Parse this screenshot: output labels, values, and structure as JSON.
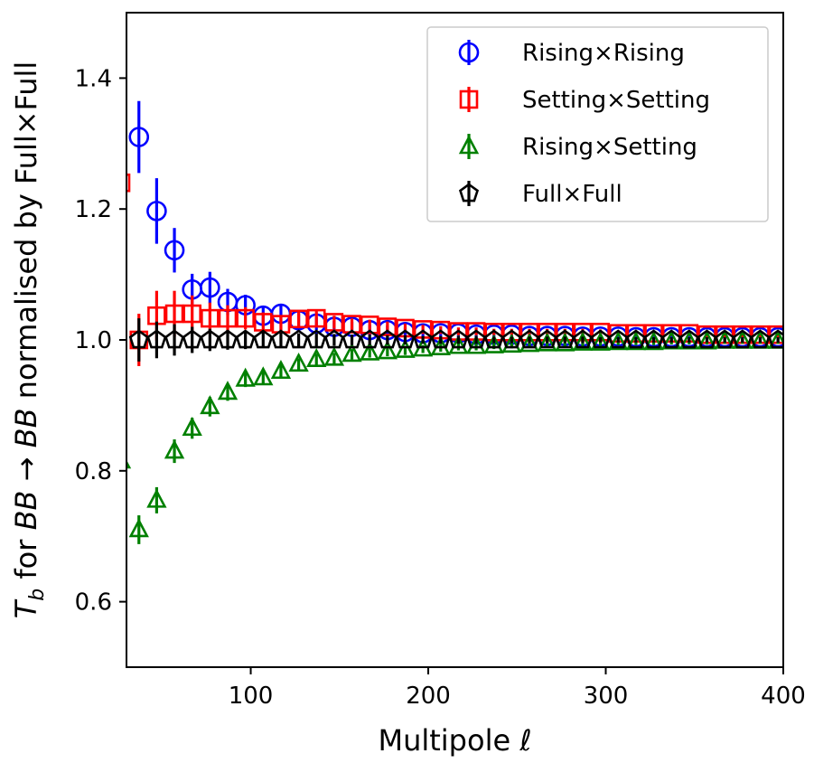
{
  "chart_data": {
    "type": "scatter",
    "title": "",
    "xlabel": "Multipole ℓ",
    "ylabel": "T_b for BB → BB normalised by Full×Full",
    "ylabel_parts": {
      "sym": "T",
      "sub": "b",
      "mid": " for ",
      "from": "BB",
      "arrow": " → ",
      "to": "BB",
      "rest": " normalised by Full×Full"
    },
    "xlim": [
      30,
      400
    ],
    "ylim": [
      0.5,
      1.5
    ],
    "xticks": [
      100,
      200,
      300,
      400
    ],
    "xtick_labels": [
      "100",
      "200",
      "300",
      "400"
    ],
    "yticks": [
      0.6,
      0.8,
      1.0,
      1.2,
      1.4
    ],
    "ytick_labels": [
      "0.6",
      "0.8",
      "1.0",
      "1.2",
      "1.4"
    ],
    "grid": false,
    "legend_position": "top-right",
    "series": [
      {
        "name": "Rising×Rising",
        "marker": "circle",
        "color": "#0000ff",
        "x": [
          37,
          47,
          57,
          67,
          77,
          87,
          97,
          107,
          117,
          127,
          137,
          147,
          157,
          167,
          177,
          187,
          197,
          207,
          217,
          227,
          237,
          247,
          257,
          267,
          277,
          287,
          297,
          307,
          317,
          327,
          337,
          347,
          357,
          367,
          377,
          387,
          397
        ],
        "y": [
          1.31,
          1.197,
          1.137,
          1.077,
          1.08,
          1.058,
          1.053,
          1.037,
          1.04,
          1.03,
          1.025,
          1.02,
          1.02,
          1.015,
          1.015,
          1.012,
          1.01,
          1.01,
          1.01,
          1.008,
          1.008,
          1.008,
          1.006,
          1.006,
          1.006,
          1.005,
          1.005,
          1.005,
          1.004,
          1.004,
          1.004,
          1.004,
          1.004,
          1.004,
          1.004,
          1.004,
          1.004
        ],
        "err": [
          0.055,
          0.05,
          0.034,
          0.024,
          0.024,
          0.02,
          0.016,
          0.014,
          0.013,
          0.011,
          0.01,
          0.009,
          0.008,
          0.008,
          0.007,
          0.007,
          0.006,
          0.006,
          0.006,
          0.006,
          0.005,
          0.005,
          0.005,
          0.005,
          0.005,
          0.005,
          0.004,
          0.004,
          0.004,
          0.004,
          0.004,
          0.004,
          0.004,
          0.004,
          0.004,
          0.004,
          0.004
        ]
      },
      {
        "name": "Setting×Setting",
        "marker": "square",
        "color": "#ff0000",
        "x": [
          37,
          47,
          57,
          67,
          77,
          87,
          97,
          107,
          117,
          127,
          137,
          147,
          157,
          167,
          177,
          187,
          197,
          207,
          217,
          227,
          237,
          247,
          257,
          267,
          277,
          287,
          297,
          307,
          317,
          327,
          337,
          347,
          357,
          367,
          377,
          387,
          397
        ],
        "y": [
          1.0,
          1.037,
          1.04,
          1.04,
          1.033,
          1.033,
          1.033,
          1.027,
          1.024,
          1.032,
          1.033,
          1.027,
          1.024,
          1.023,
          1.02,
          1.018,
          1.016,
          1.015,
          1.013,
          1.013,
          1.012,
          1.012,
          1.012,
          1.012,
          1.012,
          1.012,
          1.012,
          1.01,
          1.01,
          1.01,
          1.01,
          1.01,
          1.008,
          1.008,
          1.008,
          1.008,
          1.008
        ],
        "err": [
          0.04,
          0.038,
          0.035,
          0.028,
          0.024,
          0.02,
          0.017,
          0.015,
          0.013,
          0.012,
          0.011,
          0.01,
          0.009,
          0.008,
          0.008,
          0.007,
          0.007,
          0.006,
          0.006,
          0.006,
          0.005,
          0.005,
          0.005,
          0.005,
          0.005,
          0.005,
          0.004,
          0.004,
          0.004,
          0.004,
          0.004,
          0.004,
          0.004,
          0.004,
          0.004,
          0.004,
          0.004
        ]
      },
      {
        "name": "Rising×Setting",
        "marker": "triangle",
        "color": "#008000",
        "x": [
          37,
          47,
          57,
          67,
          77,
          87,
          97,
          107,
          117,
          127,
          137,
          147,
          157,
          167,
          177,
          187,
          197,
          207,
          217,
          227,
          237,
          247,
          257,
          267,
          277,
          287,
          297,
          307,
          317,
          327,
          337,
          347,
          357,
          367,
          377,
          387,
          397
        ],
        "y": [
          0.71,
          0.755,
          0.83,
          0.865,
          0.898,
          0.92,
          0.94,
          0.942,
          0.952,
          0.963,
          0.97,
          0.972,
          0.978,
          0.98,
          0.982,
          0.984,
          0.986,
          0.988,
          0.99,
          0.99,
          0.991,
          0.992,
          0.993,
          0.994,
          0.994,
          0.995,
          0.995,
          0.996,
          0.996,
          0.996,
          0.997,
          0.997,
          0.997,
          0.998,
          0.998,
          0.998,
          0.998
        ],
        "err": [
          0.022,
          0.02,
          0.018,
          0.016,
          0.015,
          0.013,
          0.012,
          0.011,
          0.01,
          0.009,
          0.009,
          0.008,
          0.008,
          0.007,
          0.007,
          0.007,
          0.006,
          0.006,
          0.006,
          0.006,
          0.005,
          0.005,
          0.005,
          0.005,
          0.005,
          0.005,
          0.004,
          0.004,
          0.004,
          0.004,
          0.004,
          0.004,
          0.004,
          0.004,
          0.004,
          0.004,
          0.004
        ]
      },
      {
        "name": "Full×Full",
        "marker": "pentagon",
        "color": "#000000",
        "x": [
          37,
          47,
          57,
          67,
          77,
          87,
          97,
          107,
          117,
          127,
          137,
          147,
          157,
          167,
          177,
          187,
          197,
          207,
          217,
          227,
          237,
          247,
          257,
          267,
          277,
          287,
          297,
          307,
          317,
          327,
          337,
          347,
          357,
          367,
          377,
          387,
          397
        ],
        "y": [
          1,
          1,
          1,
          1,
          1,
          1,
          1,
          1,
          1,
          1,
          1,
          1,
          1,
          1,
          1,
          1,
          1,
          1,
          1,
          1,
          1,
          1,
          1,
          1,
          1,
          1,
          1,
          1,
          1,
          1,
          1,
          1,
          1,
          1,
          1,
          1,
          1
        ],
        "err": [
          0.033,
          0.028,
          0.024,
          0.02,
          0.017,
          0.015,
          0.014,
          0.012,
          0.011,
          0.01,
          0.01,
          0.009,
          0.008,
          0.008,
          0.007,
          0.007,
          0.006,
          0.006,
          0.006,
          0.006,
          0.005,
          0.005,
          0.005,
          0.005,
          0.005,
          0.005,
          0.004,
          0.004,
          0.004,
          0.004,
          0.004,
          0.004,
          0.004,
          0.004,
          0.004,
          0.004,
          0.004
        ]
      }
    ],
    "clipped_partial_markers": [
      {
        "series": "Setting×Setting",
        "x": 30,
        "y": 1.24
      },
      {
        "series": "Rising×Setting",
        "x": 30,
        "y": 0.815
      }
    ]
  }
}
